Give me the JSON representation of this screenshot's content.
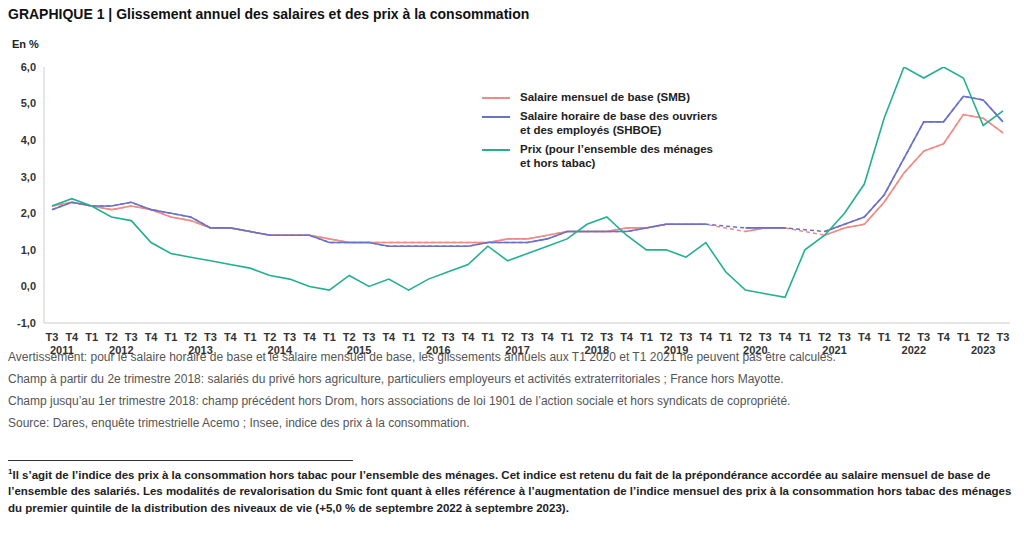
{
  "chart_data": {
    "type": "line",
    "title": "GRAPHIQUE 1 | Glissement annuel des salaires et des prix à la consommation",
    "y_axis_label": "En %",
    "categories": [
      "T3",
      "T4",
      "T1",
      "T2",
      "T3",
      "T4",
      "T1",
      "T2",
      "T3",
      "T4",
      "T1",
      "T2",
      "T3",
      "T4",
      "T1",
      "T2",
      "T3",
      "T4",
      "T1",
      "T2",
      "T3",
      "T4",
      "T1",
      "T2",
      "T3",
      "T4",
      "T1",
      "T2",
      "T3",
      "T4",
      "T1",
      "T2",
      "T3",
      "T4",
      "T1",
      "T2",
      "T3",
      "T4",
      "T1",
      "T2",
      "T3",
      "T4",
      "T1",
      "T2",
      "T3",
      "T4",
      "T1",
      "T2",
      "T3"
    ],
    "years": [
      "2011",
      "2012",
      "2013",
      "2014",
      "2015",
      "2016",
      "2017",
      "2018",
      "2019",
      "2020",
      "2021",
      "2022",
      "2023"
    ],
    "ylim": [
      -1,
      6
    ],
    "yticks": [
      {
        "value": -1,
        "label": "-1,0"
      },
      {
        "value": 0,
        "label": "0,0"
      },
      {
        "value": 1,
        "label": "1,0"
      },
      {
        "value": 2,
        "label": "2,0"
      },
      {
        "value": 3,
        "label": "3,0"
      },
      {
        "value": 4,
        "label": "4,0"
      },
      {
        "value": 5,
        "label": "5,0"
      },
      {
        "value": 6,
        "label": "6,0"
      }
    ],
    "grid": false,
    "legend": "top",
    "marker": "none",
    "series": [
      {
        "name": "Salaire mensuel de base (SMB)",
        "color": "#f08c84",
        "line_style": "solid",
        "values": [
          2.2,
          2.3,
          2.2,
          2.1,
          2.2,
          2.1,
          1.9,
          1.8,
          1.6,
          1.6,
          1.5,
          1.4,
          1.4,
          1.4,
          1.3,
          1.2,
          1.2,
          1.2,
          1.2,
          1.2,
          1.2,
          1.2,
          1.2,
          1.3,
          1.3,
          1.4,
          1.5,
          1.5,
          1.5,
          1.6,
          1.6,
          1.7,
          1.7,
          1.7,
          null,
          1.5,
          1.6,
          1.6,
          null,
          1.4,
          1.6,
          1.7,
          2.3,
          3.1,
          3.7,
          3.9,
          4.7,
          4.6,
          4.2
        ]
      },
      {
        "name": "Salaire horaire de base des ouvriers et des employés (SHBOE)",
        "color": "#6b70c9",
        "line_style": "solid",
        "values": [
          2.1,
          2.3,
          2.2,
          2.2,
          2.3,
          2.1,
          2.0,
          1.9,
          1.6,
          1.6,
          1.5,
          1.4,
          1.4,
          1.4,
          1.2,
          1.2,
          1.2,
          1.1,
          1.1,
          1.1,
          1.1,
          1.1,
          1.2,
          1.2,
          1.2,
          1.3,
          1.5,
          1.5,
          1.5,
          1.5,
          1.6,
          1.7,
          1.7,
          1.7,
          null,
          1.6,
          1.6,
          1.6,
          null,
          1.5,
          1.7,
          1.9,
          2.5,
          3.5,
          4.5,
          4.5,
          5.2,
          5.1,
          4.5
        ]
      },
      {
        "name": "Prix (pour l’ensemble des ménages et hors tabac)",
        "color": "#23b08e",
        "line_style": "solid",
        "values": [
          2.2,
          2.4,
          2.2,
          1.9,
          1.8,
          1.2,
          0.9,
          0.8,
          0.7,
          0.6,
          0.5,
          0.3,
          0.2,
          0.0,
          -0.1,
          0.3,
          0.0,
          0.2,
          -0.1,
          0.2,
          0.4,
          0.6,
          1.1,
          0.7,
          0.9,
          1.1,
          1.3,
          1.7,
          1.9,
          1.4,
          1.0,
          1.0,
          0.8,
          1.2,
          0.4,
          -0.1,
          -0.2,
          -0.3,
          1.0,
          1.4,
          2.0,
          2.8,
          4.6,
          6.0,
          5.7,
          6.0,
          5.7,
          4.4,
          4.8
        ]
      }
    ],
    "notes": [
      "Avertissement: pour le salaire horaire de base et le salaire mensuel de base, les glissements annuels aux T1 2020 et T1 2021 ne peuvent pas être calculés.",
      "Champ à partir du 2e trimestre 2018: salariés du privé hors agriculture, particuliers employeurs et activités extraterritoriales ; France hors Mayotte.",
      "Champ jusqu’au 1er trimestre 2018: champ précédent hors Drom, hors associations de loi 1901 de l’action sociale et hors syndicats de copropriété.",
      "Source: Dares, enquête trimestrielle Acemo ; Insee, indice des prix à la consommation."
    ],
    "footnote": {
      "marker": "1",
      "text": "Il s’agit de l’indice des prix à la consommation hors tabac pour l’ensemble des ménages. Cet indice est retenu du fait de la prépondérance accordée au salaire mensuel de base de l’ensemble des salariés. Les modalités de revalorisation du Smic font quant à elles référence à l’augmentation de l’indice mensuel des prix à la consommation hors tabac des ménages du premier quintile de la distribution des niveaux de vie (+5,0 % de septembre 2022 à septembre 2023)."
    }
  }
}
